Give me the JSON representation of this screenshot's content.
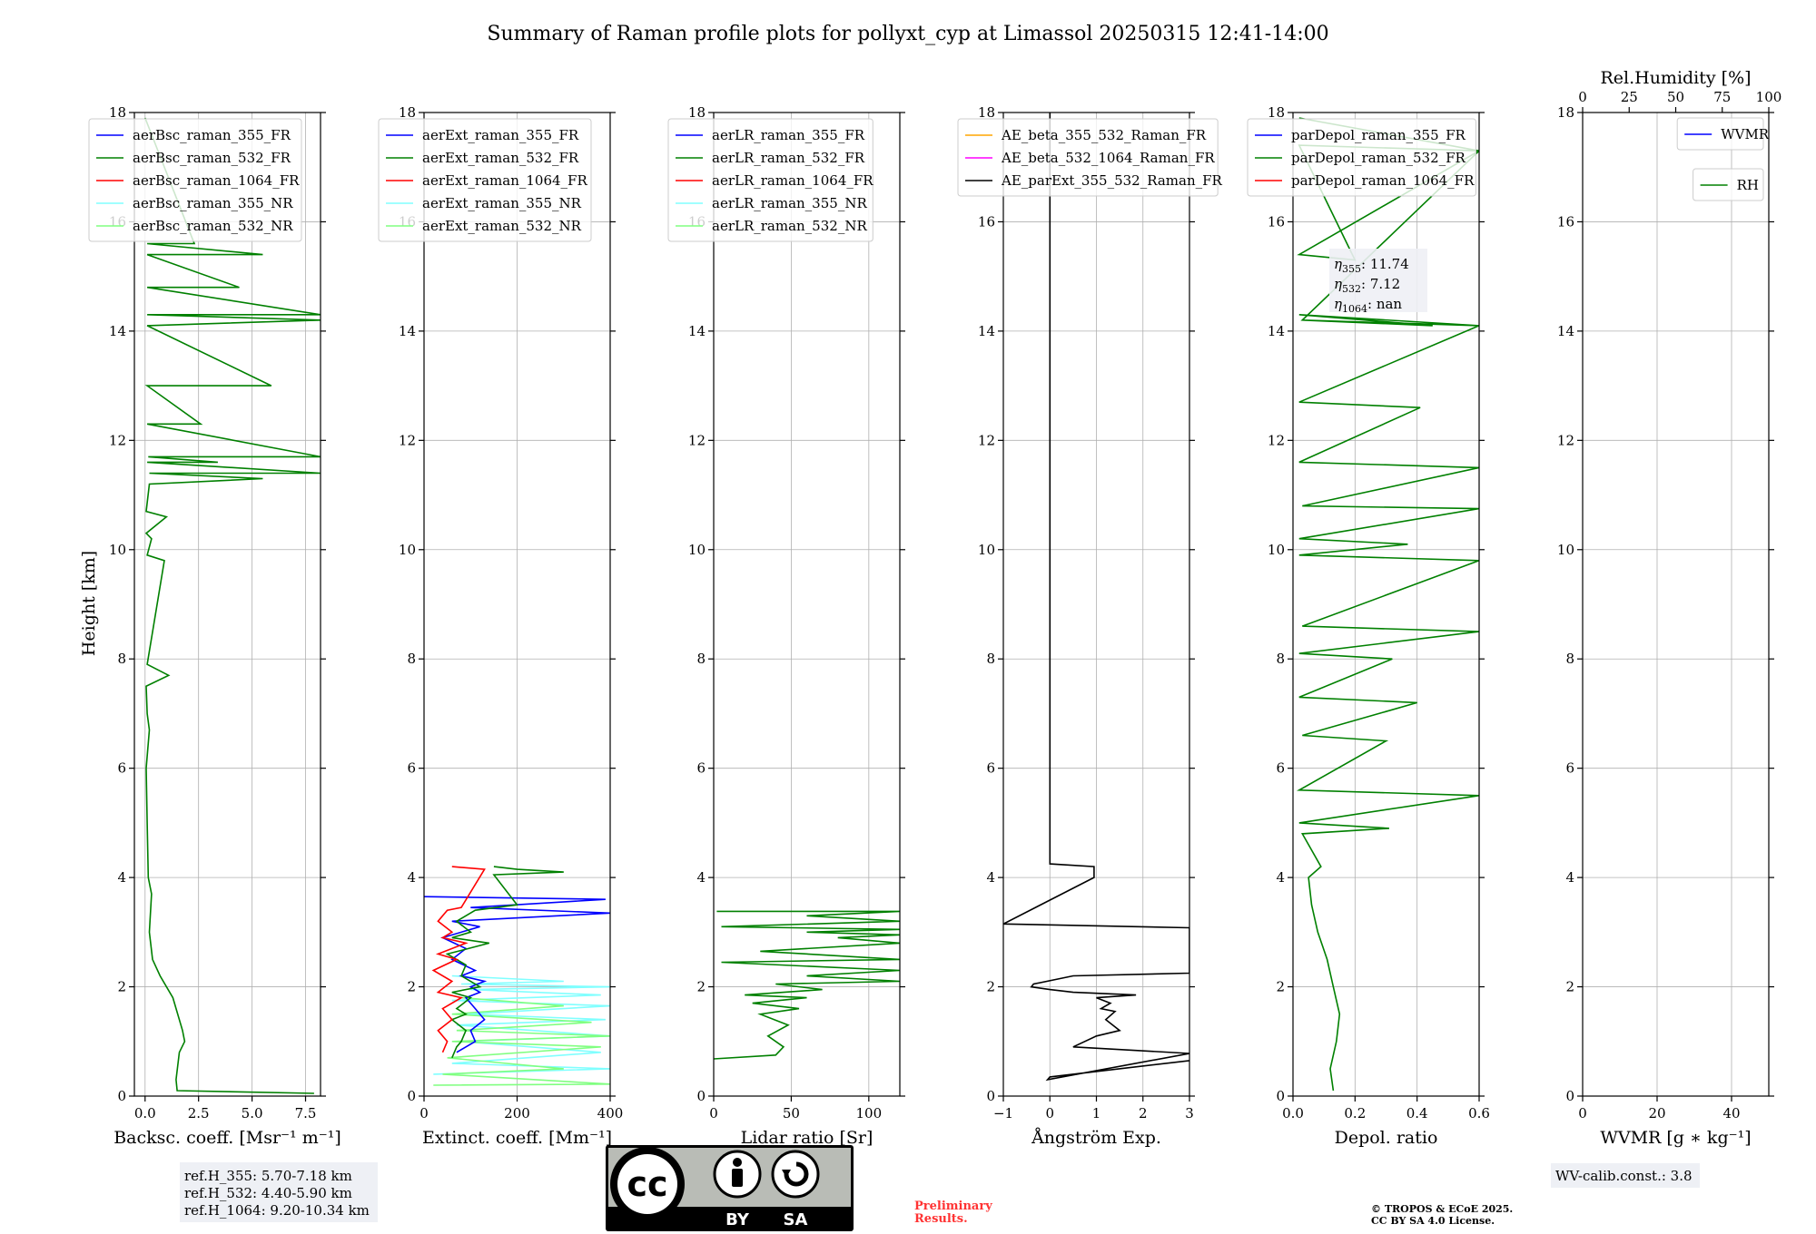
{
  "figure": {
    "title": "Summary of Raman profile plots for pollyxt_cyp at Limassol 20250315 12:41-14:00",
    "ylabel": "Height [km]"
  },
  "chart_data": [
    {
      "id": "bsc",
      "type": "line",
      "xlabel": "Backsc. coeff. [Msr⁻¹ m⁻¹]",
      "xlim": [
        -0.5,
        8.2
      ],
      "xticks": [
        0,
        2.5,
        5,
        7.5
      ],
      "xtick_labels": [
        "0.0",
        "2.5",
        "5.0",
        "7.5"
      ],
      "ylim": [
        0,
        18
      ],
      "yticks": [
        0,
        2,
        4,
        6,
        8,
        10,
        12,
        14,
        16,
        18
      ],
      "ytick_labels": [
        "0",
        "2",
        "4",
        "6",
        "8",
        "10",
        "12",
        "14",
        "16",
        "18"
      ],
      "grid": true,
      "legend_position": "upper-left",
      "legend": [
        {
          "name": "aerBsc_raman_355_FR",
          "color": "#0000ff"
        },
        {
          "name": "aerBsc_raman_532_FR",
          "color": "#008000"
        },
        {
          "name": "aerBsc_raman_1064_FR",
          "color": "#ff0000"
        },
        {
          "name": "aerBsc_raman_355_NR",
          "color": "#80ffff"
        },
        {
          "name": "aerBsc_raman_532_NR",
          "color": "#80ff80"
        }
      ],
      "series": [
        {
          "name": "aerBsc_raman_532_FR",
          "color": "#008000",
          "x": [
            7.9,
            1.5,
            1.45,
            1.6,
            1.85,
            1.75,
            1.3,
            0.7,
            0.35,
            0.2,
            0.3,
            0.15,
            0.1,
            0.05,
            0.2,
            0.1,
            0.05,
            1.1,
            0.1,
            0.9,
            0.1,
            0.3,
            0.05,
            1.0,
            0.05,
            0.2,
            5.5,
            0.2,
            8.2,
            0.1,
            3.4,
            0.15,
            8.2,
            0.1,
            2.6,
            0.1,
            5.9,
            0.1,
            8.2,
            0.1,
            8.2,
            0.1,
            4.4,
            0.1,
            5.5,
            0.1,
            2.3,
            0.0
          ],
          "y": [
            0.05,
            0.1,
            0.3,
            0.8,
            1.0,
            1.2,
            1.8,
            2.2,
            2.5,
            3.0,
            3.7,
            4.0,
            5.0,
            6.0,
            6.7,
            7.0,
            7.5,
            7.7,
            7.9,
            9.8,
            9.9,
            10.2,
            10.3,
            10.6,
            10.7,
            11.2,
            11.3,
            11.4,
            11.4,
            11.6,
            11.6,
            11.7,
            11.7,
            12.3,
            12.3,
            13.0,
            13.0,
            14.1,
            14.2,
            14.3,
            14.3,
            14.8,
            14.8,
            15.4,
            15.4,
            15.6,
            15.6,
            17.9
          ]
        }
      ]
    },
    {
      "id": "ext",
      "type": "line",
      "xlabel": "Extinct. coeff. [Mm⁻¹]",
      "xlim": [
        0,
        400
      ],
      "xticks": [
        0,
        200,
        400
      ],
      "xtick_labels": [
        "0",
        "200",
        "400"
      ],
      "ylim": [
        0,
        18
      ],
      "yticks": [
        0,
        2,
        4,
        6,
        8,
        10,
        12,
        14,
        16,
        18
      ],
      "ytick_labels": [
        "0",
        "2",
        "4",
        "6",
        "8",
        "10",
        "12",
        "14",
        "16",
        "18"
      ],
      "grid": true,
      "legend_position": "upper-left",
      "legend": [
        {
          "name": "aerExt_raman_355_FR",
          "color": "#0000ff"
        },
        {
          "name": "aerExt_raman_532_FR",
          "color": "#008000"
        },
        {
          "name": "aerExt_raman_1064_FR",
          "color": "#ff0000"
        },
        {
          "name": "aerExt_raman_355_NR",
          "color": "#80ffff"
        },
        {
          "name": "aerExt_raman_532_NR",
          "color": "#80ff80"
        }
      ],
      "series": [
        {
          "name": "aerExt_raman_355_NR",
          "color": "#80ffff",
          "x": [
            20,
            400,
            60,
            380,
            80,
            400,
            70,
            390,
            90,
            400,
            60,
            380,
            100,
            400,
            80,
            300,
            60
          ],
          "y": [
            0.4,
            0.5,
            0.6,
            0.8,
            1.0,
            1.1,
            1.3,
            1.4,
            1.5,
            1.65,
            1.75,
            1.85,
            1.95,
            2.0,
            2.05,
            2.1,
            2.2
          ]
        },
        {
          "name": "aerExt_raman_532_NR",
          "color": "#80ff80",
          "x": [
            20,
            400,
            40,
            300,
            50,
            380,
            60,
            400,
            70,
            360,
            60,
            300,
            80
          ],
          "y": [
            0.2,
            0.22,
            0.4,
            0.5,
            0.7,
            0.9,
            1.0,
            1.1,
            1.2,
            1.35,
            1.5,
            1.65,
            1.8
          ]
        },
        {
          "name": "aerExt_raman_355_FR",
          "color": "#0000ff",
          "x": [
            70,
            110,
            100,
            130,
            110,
            90,
            120,
            100,
            130,
            80,
            110,
            60,
            90,
            40,
            120,
            60,
            400,
            100,
            390,
            0
          ],
          "y": [
            0.8,
            1.0,
            1.2,
            1.4,
            1.6,
            1.8,
            1.9,
            2.0,
            2.1,
            2.2,
            2.3,
            2.5,
            2.7,
            2.9,
            3.1,
            3.2,
            3.35,
            3.45,
            3.6,
            3.65
          ]
        },
        {
          "name": "aerExt_raman_532_FR",
          "color": "#008000",
          "x": [
            60,
            70,
            80,
            90,
            60,
            90,
            70,
            100,
            60,
            120,
            80,
            90,
            50,
            140,
            60,
            100,
            70,
            110,
            200,
            150,
            300,
            200,
            150
          ],
          "y": [
            0.7,
            0.9,
            1.0,
            1.2,
            1.4,
            1.5,
            1.6,
            1.8,
            1.9,
            2.0,
            2.2,
            2.4,
            2.6,
            2.8,
            2.9,
            3.0,
            3.2,
            3.4,
            3.5,
            4.05,
            4.1,
            4.15,
            4.2
          ]
        },
        {
          "name": "aerExt_raman_1064_FR",
          "color": "#ff0000",
          "x": [
            40,
            50,
            30,
            60,
            40,
            80,
            30,
            60,
            20,
            70,
            30,
            90,
            40,
            60,
            30,
            50,
            80,
            130,
            60
          ],
          "y": [
            0.8,
            1.0,
            1.2,
            1.4,
            1.6,
            1.8,
            1.9,
            2.1,
            2.3,
            2.5,
            2.6,
            2.8,
            2.9,
            3.0,
            3.2,
            3.4,
            3.45,
            4.15,
            4.2
          ]
        }
      ]
    },
    {
      "id": "lr",
      "type": "line",
      "xlabel": "Lidar ratio [Sr]",
      "xlim": [
        0,
        120
      ],
      "xticks": [
        0,
        50,
        100
      ],
      "xtick_labels": [
        "0",
        "50",
        "100"
      ],
      "ylim": [
        0,
        18
      ],
      "yticks": [
        0,
        2,
        4,
        6,
        8,
        10,
        12,
        14,
        16,
        18
      ],
      "ytick_labels": [
        "0",
        "2",
        "4",
        "6",
        "8",
        "10",
        "12",
        "14",
        "16",
        "18"
      ],
      "grid": true,
      "legend_position": "upper-left",
      "legend": [
        {
          "name": "aerLR_raman_355_FR",
          "color": "#0000ff"
        },
        {
          "name": "aerLR_raman_532_FR",
          "color": "#008000"
        },
        {
          "name": "aerLR_raman_1064_FR",
          "color": "#ff0000"
        },
        {
          "name": "aerLR_raman_355_NR",
          "color": "#80ffff"
        },
        {
          "name": "aerLR_raman_532_NR",
          "color": "#80ff80"
        }
      ],
      "series": [
        {
          "name": "aerLR_raman_532_FR",
          "color": "#008000",
          "x": [
            0,
            40,
            45,
            35,
            48,
            30,
            55,
            25,
            60,
            20,
            70,
            40,
            120,
            60,
            120,
            5,
            120,
            30,
            120,
            80,
            120,
            60,
            120,
            5,
            120,
            60,
            120,
            2
          ],
          "y": [
            0.68,
            0.75,
            0.9,
            1.1,
            1.3,
            1.5,
            1.6,
            1.7,
            1.8,
            1.85,
            1.95,
            2.05,
            2.1,
            2.2,
            2.3,
            2.45,
            2.5,
            2.65,
            2.8,
            2.9,
            2.95,
            3.0,
            3.05,
            3.1,
            3.2,
            3.3,
            3.38,
            3.38
          ]
        }
      ]
    },
    {
      "id": "ae",
      "type": "line",
      "xlabel": "Ångström Exp.",
      "xlim": [
        -1,
        3
      ],
      "xticks": [
        -1,
        0,
        1,
        2,
        3
      ],
      "xtick_labels": [
        "−1",
        "0",
        "1",
        "2",
        "3"
      ],
      "ylim": [
        0,
        18
      ],
      "yticks": [
        0,
        2,
        4,
        6,
        8,
        10,
        12,
        14,
        16,
        18
      ],
      "ytick_labels": [
        "0",
        "2",
        "4",
        "6",
        "8",
        "10",
        "12",
        "14",
        "16",
        "18"
      ],
      "grid": true,
      "legend_position": "upper-left",
      "legend": [
        {
          "name": "AE_beta_355_532_Raman_FR",
          "color": "#ffa500"
        },
        {
          "name": "AE_beta_532_1064_Raman_FR",
          "color": "#ff00ff"
        },
        {
          "name": "AE_parExt_355_532_Raman_FR",
          "color": "#000000"
        }
      ],
      "series": [
        {
          "name": "AE_parExt_355_532_Raman_FR",
          "color": "#000000",
          "x": [
            3.0,
            0.0,
            -0.05,
            3.0,
            0.5,
            1.0,
            1.5,
            1.2,
            1.4,
            1.1,
            1.3,
            1.0,
            1.85,
            0.5,
            0.0,
            -0.4,
            -0.35,
            0.5,
            3.0,
            3.0,
            -1.0,
            0.95,
            0.95,
            0.0,
            0.0
          ],
          "y": [
            0.65,
            0.35,
            0.3,
            0.78,
            0.9,
            1.1,
            1.2,
            1.4,
            1.55,
            1.6,
            1.7,
            1.8,
            1.85,
            1.9,
            1.95,
            2.0,
            2.05,
            2.2,
            2.25,
            3.08,
            3.15,
            4.0,
            4.2,
            4.25,
            18.0
          ]
        }
      ]
    },
    {
      "id": "depol",
      "type": "line",
      "xlabel": "Depol. ratio",
      "xlim": [
        0,
        0.6
      ],
      "xticks": [
        0,
        0.2,
        0.4,
        0.6
      ],
      "xtick_labels": [
        "0.0",
        "0.2",
        "0.4",
        "0.6"
      ],
      "ylim": [
        0,
        18
      ],
      "yticks": [
        0,
        2,
        4,
        6,
        8,
        10,
        12,
        14,
        16,
        18
      ],
      "ytick_labels": [
        "0",
        "2",
        "4",
        "6",
        "8",
        "10",
        "12",
        "14",
        "16",
        "18"
      ],
      "grid": true,
      "legend_position": "upper-left",
      "legend": [
        {
          "name": "parDepol_raman_355_FR",
          "color": "#0000ff"
        },
        {
          "name": "parDepol_raman_532_FR",
          "color": "#008000"
        },
        {
          "name": "parDepol_raman_1064_FR",
          "color": "#ff0000"
        }
      ],
      "annotation": {
        "line1_sym": "η",
        "line1_sub": "355",
        "line1_val": ": 11.74",
        "line2_sym": "η",
        "line2_sub": "532",
        "line2_val": ": 7.12",
        "line3_sym": "η",
        "line3_sub": "1064",
        "line3_val": ": nan"
      },
      "series": [
        {
          "name": "parDepol_raman_532_FR",
          "color": "#008000",
          "x": [
            0.13,
            0.12,
            0.14,
            0.15,
            0.13,
            0.11,
            0.08,
            0.06,
            0.05,
            0.09,
            0.03,
            0.31,
            0.02,
            0.6,
            0.02,
            0.3,
            0.03,
            0.4,
            0.02,
            0.32,
            0.02,
            0.6,
            0.03,
            0.6,
            0.02,
            0.37,
            0.02,
            0.6,
            0.03,
            0.6,
            0.02,
            0.41,
            0.02,
            0.6,
            0.03,
            0.45,
            0.02,
            0.6,
            0.03,
            0.6,
            0.02,
            0.2,
            0.02,
            0.6,
            0.02
          ],
          "y": [
            0.1,
            0.5,
            1.0,
            1.5,
            2.0,
            2.5,
            3.0,
            3.5,
            4.0,
            4.2,
            4.8,
            4.9,
            5.0,
            5.5,
            5.6,
            6.5,
            6.6,
            7.2,
            7.3,
            8.0,
            8.1,
            8.5,
            8.6,
            9.8,
            9.9,
            10.1,
            10.2,
            10.75,
            10.8,
            11.5,
            11.6,
            12.6,
            12.7,
            14.1,
            14.2,
            14.1,
            14.3,
            14.1,
            14.2,
            17.3,
            17.4,
            15.3,
            15.4,
            17.3,
            17.9
          ]
        }
      ]
    },
    {
      "id": "wv",
      "type": "line",
      "xlabel": "WVMR [g ∗ kg⁻¹]",
      "xlim": [
        0,
        50
      ],
      "xticks": [
        0,
        20,
        40
      ],
      "xtick_labels": [
        "0",
        "20",
        "40"
      ],
      "top_xlabel": "Rel.Humidity [%]",
      "top_xlim": [
        0,
        100
      ],
      "top_xticks": [
        0,
        25,
        50,
        75,
        100
      ],
      "top_xtick_labels": [
        "0",
        "25",
        "50",
        "75",
        "100"
      ],
      "ylim": [
        0,
        18
      ],
      "yticks": [
        0,
        2,
        4,
        6,
        8,
        10,
        12,
        14,
        16,
        18
      ],
      "ytick_labels": [
        "0",
        "2",
        "4",
        "6",
        "8",
        "10",
        "12",
        "14",
        "16",
        "18"
      ],
      "grid": true,
      "legend_position": "upper-right",
      "legend": [
        {
          "name": "WVMR",
          "color": "#0000ff"
        }
      ],
      "legend2": [
        {
          "name": "RH",
          "color": "#008000"
        }
      ],
      "series": []
    }
  ],
  "footer": {
    "ref_box": [
      "ref.H_355: 5.70-7.18 km",
      "ref.H_532: 4.40-5.90 km",
      "ref.H_1064: 9.20-10.34 km"
    ],
    "license_by": "BY",
    "license_sa": "SA",
    "license_cc": "cc",
    "preliminary_1": "Preliminary",
    "preliminary_2": "Results.",
    "copyright_1": "© TROPOS & ECoE 2025.",
    "copyright_2": "CC BY SA 4.0 License.",
    "wv_calib": "WV-calib.const.: 3.8"
  }
}
